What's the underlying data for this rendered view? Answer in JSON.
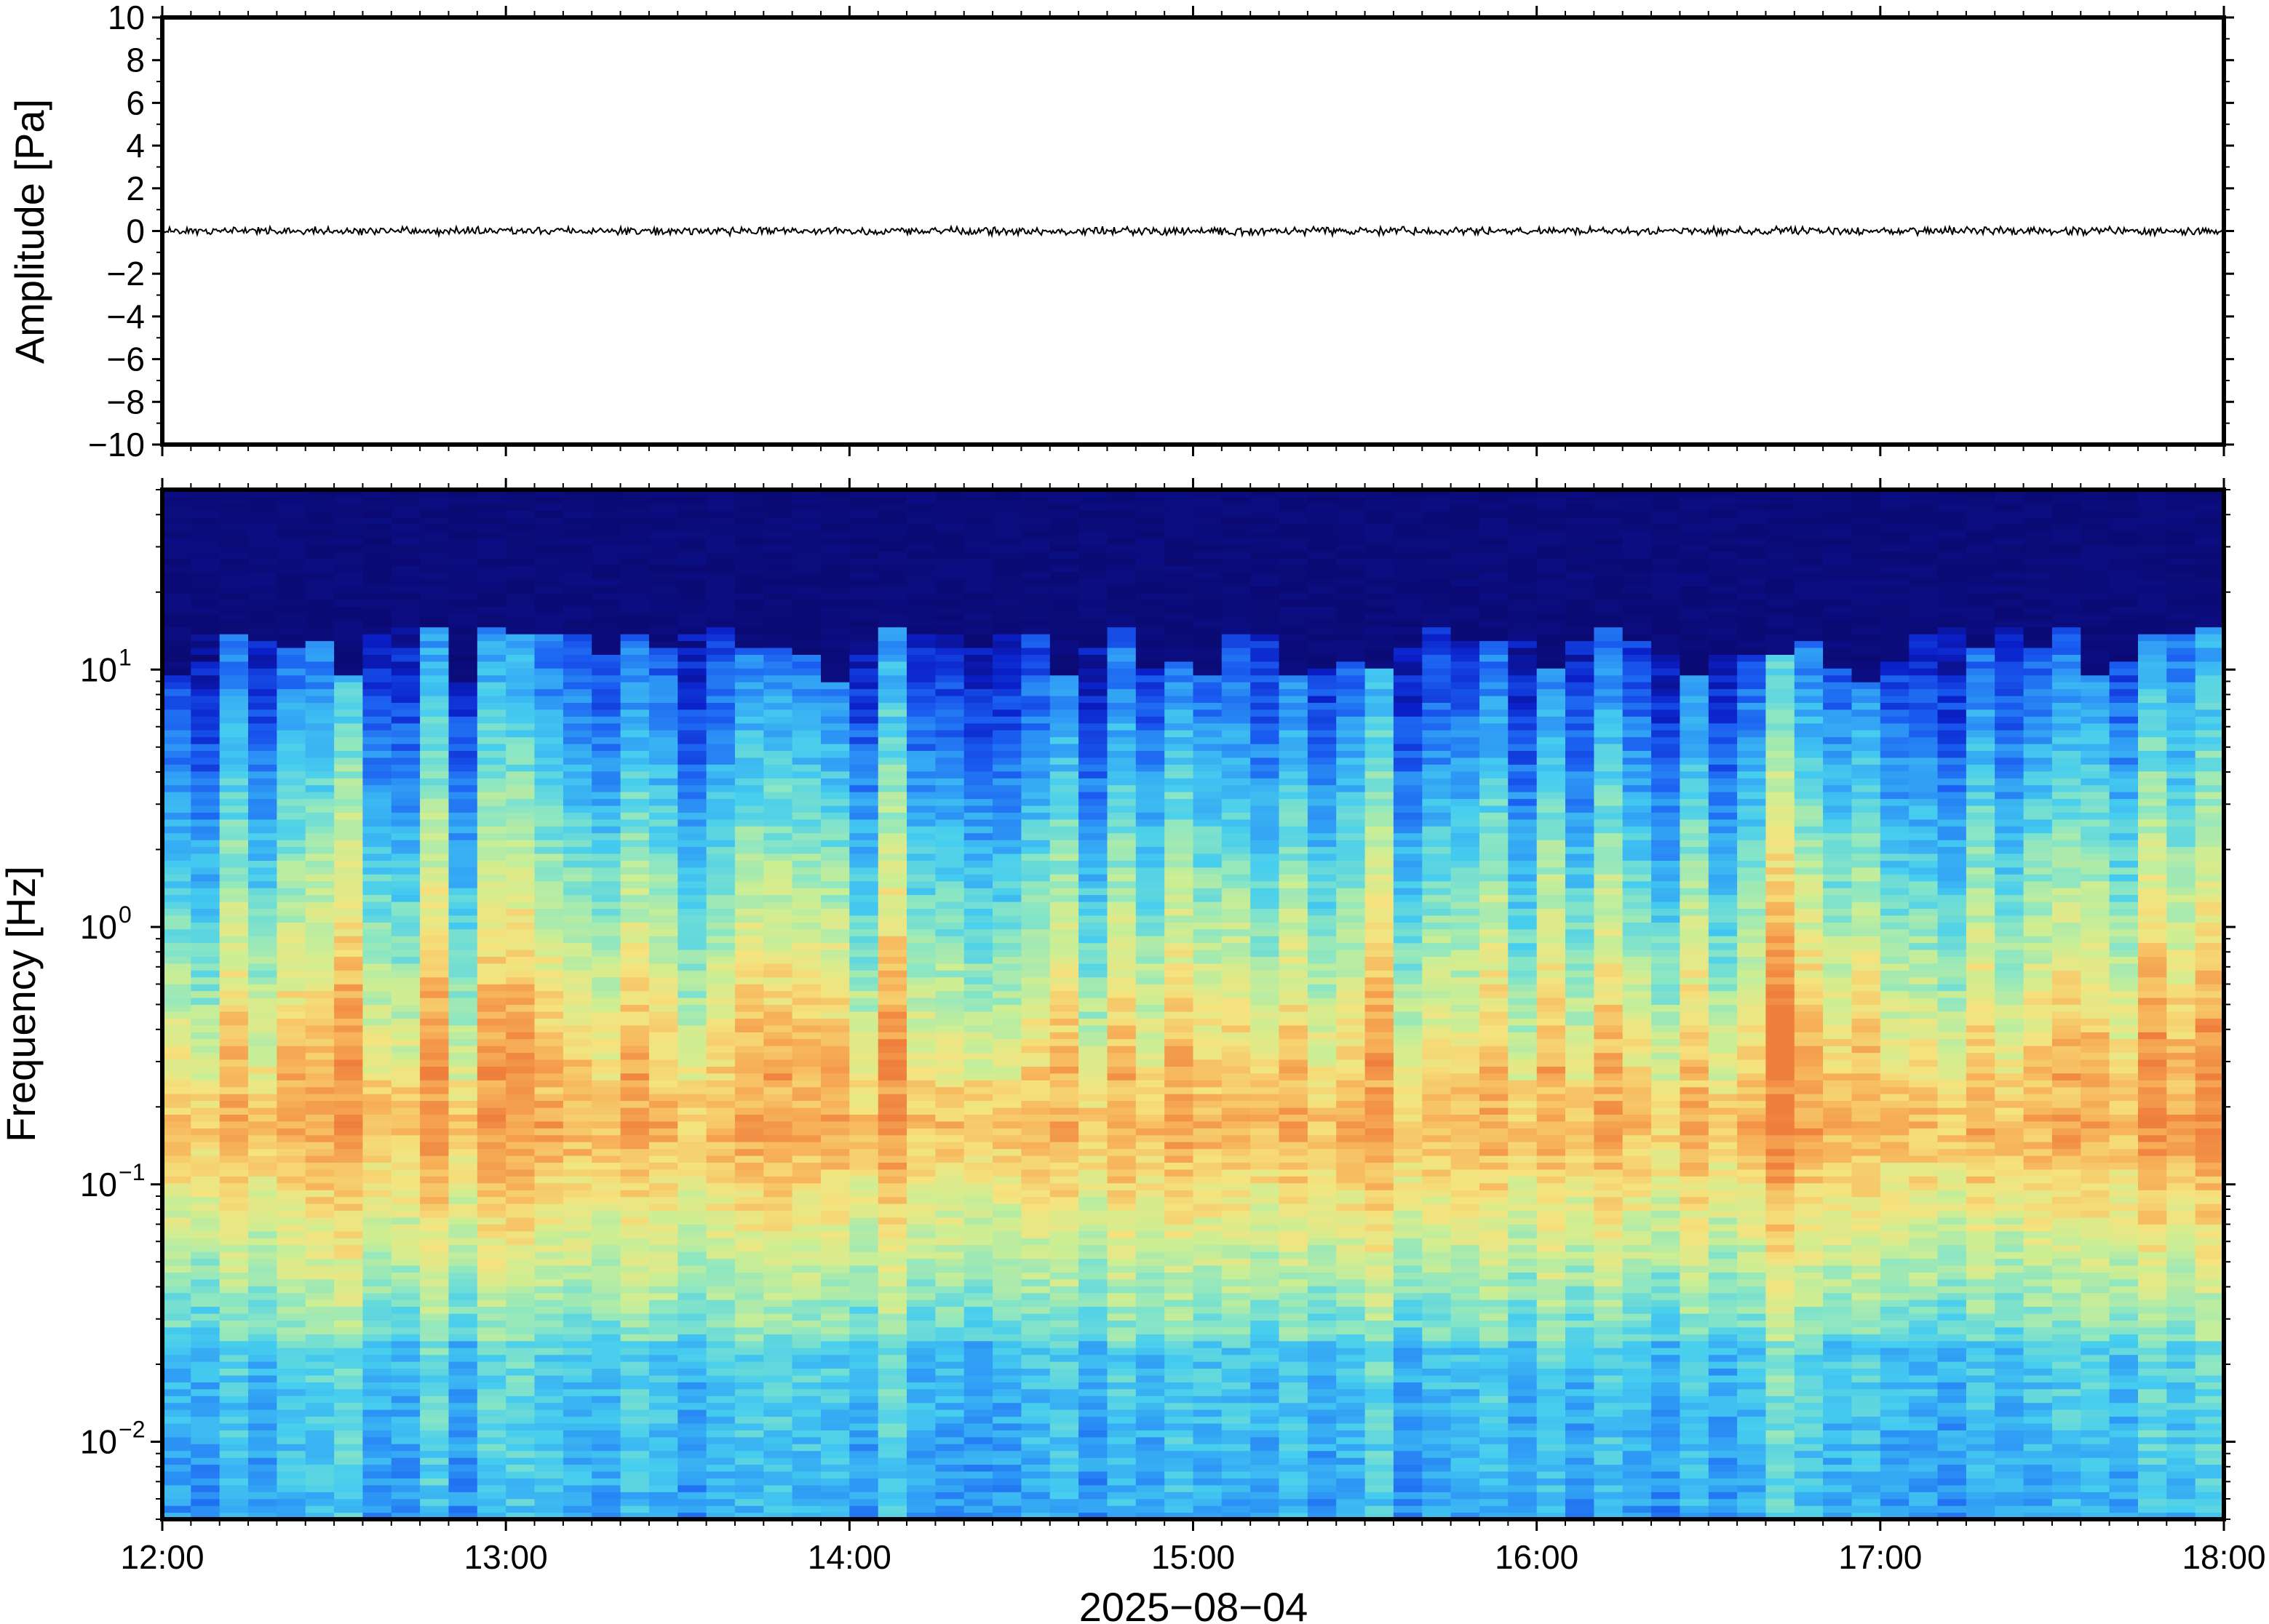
{
  "chart_data": [
    {
      "type": "line",
      "panel": "waveform",
      "ylabel": "Amplitude [Pa]",
      "ylim": [
        -10,
        10
      ],
      "y_ticks": [
        {
          "value": 10,
          "label": "10"
        },
        {
          "value": 8,
          "label": "8"
        },
        {
          "value": 6,
          "label": "6"
        },
        {
          "value": 4,
          "label": "4"
        },
        {
          "value": 2,
          "label": "2"
        },
        {
          "value": 0,
          "label": "0"
        },
        {
          "value": -2,
          "label": "−2"
        },
        {
          "value": -4,
          "label": "−4"
        },
        {
          "value": -6,
          "label": "−6"
        },
        {
          "value": -8,
          "label": "−8"
        },
        {
          "value": -10,
          "label": "−10"
        }
      ],
      "xlim": [
        "12:00",
        "18:00"
      ],
      "series": [
        {
          "values_description_free": true,
          "amplitude_peak_pa": 0.15,
          "mean_pa": 0
        }
      ],
      "grid": false,
      "trace_color": "#000000"
    },
    {
      "type": "heatmap",
      "panel": "spectrogram",
      "ylabel": "Frequency [Hz]",
      "yscale": "log",
      "ylim": [
        0.005,
        50
      ],
      "y_ticks": [
        {
          "value": 10,
          "base": "10",
          "exp": "1"
        },
        {
          "value": 1,
          "base": "10",
          "exp": "0"
        },
        {
          "value": 0.1,
          "base": "10",
          "exp": "−1"
        },
        {
          "value": 0.01,
          "base": "10",
          "exp": "−2"
        }
      ],
      "xlabel": "2025−08−04",
      "x_ticks": [
        "12:00",
        "13:00",
        "14:00",
        "15:00",
        "16:00",
        "17:00",
        "18:00"
      ],
      "colormap": [
        "#0b0a73",
        "#0a1fc8",
        "#1a5cf0",
        "#2f9cf5",
        "#46cdef",
        "#8ae6c4",
        "#cdee93",
        "#f5e37e",
        "#f7b259",
        "#ef7f3d"
      ],
      "microbarom_peak_hz": 0.17,
      "grid": false
    }
  ]
}
